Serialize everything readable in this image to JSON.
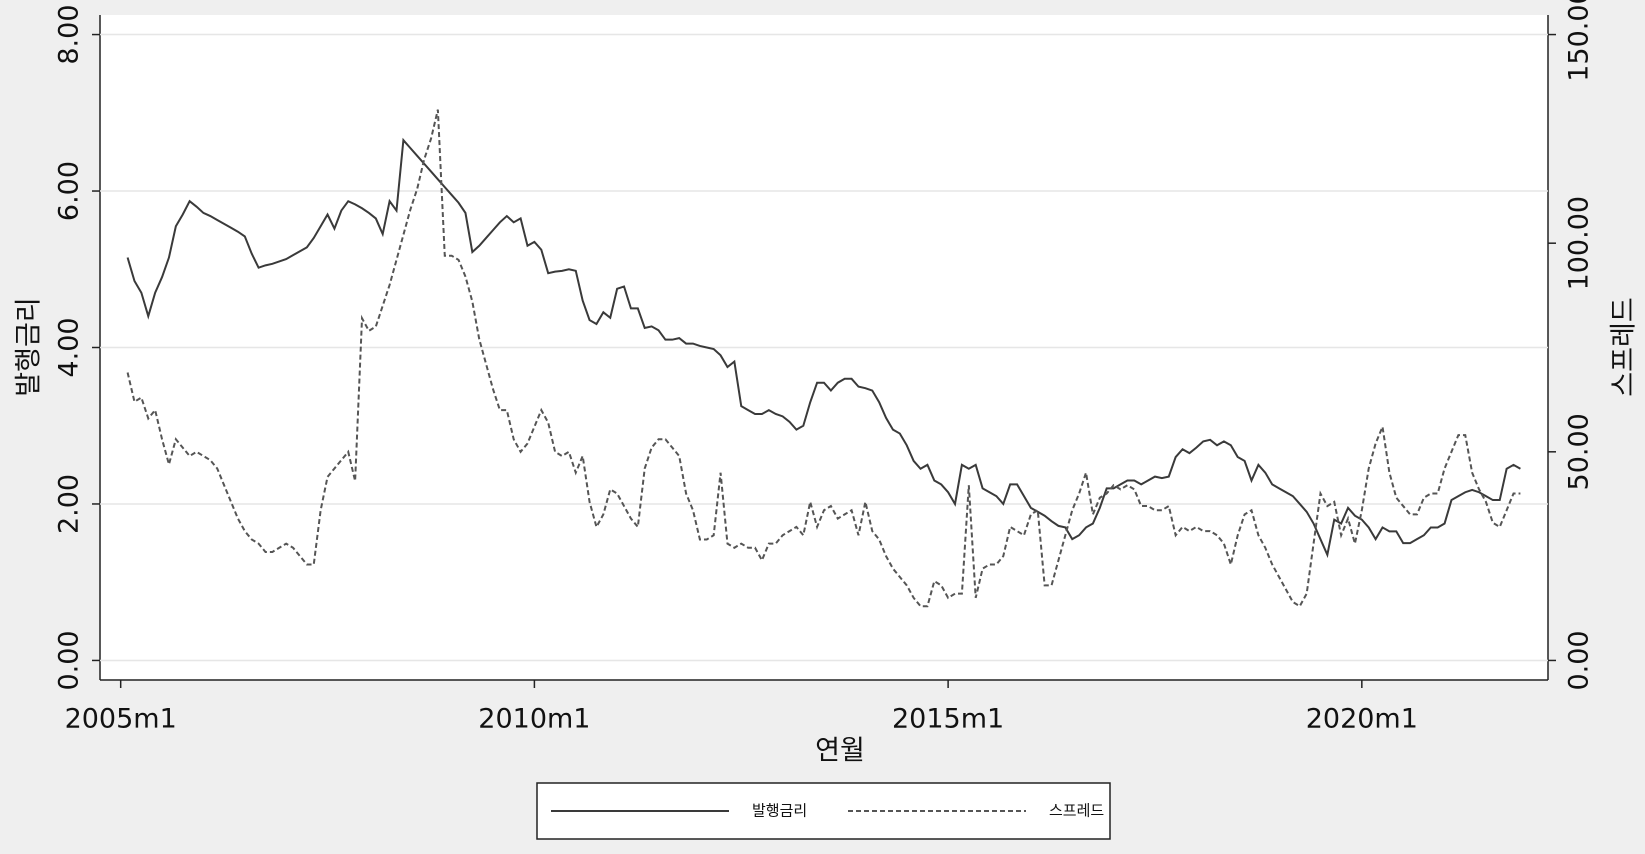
{
  "chart_data": {
    "type": "line",
    "x_label": "연월",
    "y_label": "발행금리",
    "y2_label": "스프레드",
    "xlim": [
      "2004m10",
      "2022m4"
    ],
    "xticks": [
      "2005m1",
      "2010m1",
      "2015m1",
      "2020m1"
    ],
    "ylim": [
      -0.25,
      8.25
    ],
    "yticks": [
      {
        "value": 0,
        "label": "0.00"
      },
      {
        "value": 2,
        "label": "2.00"
      },
      {
        "value": 4,
        "label": "4.00"
      },
      {
        "value": 6,
        "label": "6.00"
      },
      {
        "value": 8,
        "label": "8.00"
      }
    ],
    "y2lim": [
      -4.6875,
      154.6875
    ],
    "y2ticks": [
      {
        "value": 0,
        "label": "0.00"
      },
      {
        "value": 50,
        "label": "50.00"
      },
      {
        "value": 100,
        "label": "100.00"
      },
      {
        "value": 150,
        "label": "150.00"
      }
    ],
    "grid": true,
    "legend": "bottom",
    "x": [
      "2005m2",
      "2005m3",
      "2005m4",
      "2005m5",
      "2005m6",
      "2005m7",
      "2005m8",
      "2005m9",
      "2005m10",
      "2005m11",
      "2005m12",
      "2006m1",
      "2006m2",
      "2006m3",
      "2006m4",
      "2006m5",
      "2006m6",
      "2006m7",
      "2006m8",
      "2006m9",
      "2006m10",
      "2006m11",
      "2006m12",
      "2007m1",
      "2007m2",
      "2007m3",
      "2007m4",
      "2007m5",
      "2007m6",
      "2007m7",
      "2007m8",
      "2007m9",
      "2007m10",
      "2007m11",
      "2007m12",
      "2008m1",
      "2008m2",
      "2008m3",
      "2008m4",
      "2008m5",
      "2008m6",
      "2008m7",
      "2008m8",
      "2008m9",
      "2008m10",
      "2008m11",
      "2008m12",
      "2009m1",
      "2009m2",
      "2009m3",
      "2009m4",
      "2009m5",
      "2009m6",
      "2009m7",
      "2009m8",
      "2009m9",
      "2009m10",
      "2009m11",
      "2009m12",
      "2010m1",
      "2010m2",
      "2010m3",
      "2010m4",
      "2010m5",
      "2010m6",
      "2010m7",
      "2010m8",
      "2010m9",
      "2010m10",
      "2010m11",
      "2010m12",
      "2011m1",
      "2011m2",
      "2011m3",
      "2011m4",
      "2011m5",
      "2011m6",
      "2011m7",
      "2011m8",
      "2011m9",
      "2011m10",
      "2011m11",
      "2011m12",
      "2012m1",
      "2012m2",
      "2012m3",
      "2012m4",
      "2012m5",
      "2012m6",
      "2012m7",
      "2012m8",
      "2012m9",
      "2012m10",
      "2012m11",
      "2012m12",
      "2013m1",
      "2013m2",
      "2013m3",
      "2013m4",
      "2013m5",
      "2013m6",
      "2013m7",
      "2013m8",
      "2013m9",
      "2013m10",
      "2013m11",
      "2013m12",
      "2014m1",
      "2014m2",
      "2014m3",
      "2014m4",
      "2014m5",
      "2014m6",
      "2014m7",
      "2014m8",
      "2014m9",
      "2014m10",
      "2014m11",
      "2014m12",
      "2015m1",
      "2015m2",
      "2015m3",
      "2015m4",
      "2015m5",
      "2015m6",
      "2015m7",
      "2015m8",
      "2015m9",
      "2015m10",
      "2015m11",
      "2015m12",
      "2016m1",
      "2016m2",
      "2016m3",
      "2016m4",
      "2016m5",
      "2016m6",
      "2016m7",
      "2016m8",
      "2016m9",
      "2016m10",
      "2016m11",
      "2016m12",
      "2017m1",
      "2017m2",
      "2017m3",
      "2017m4",
      "2017m5",
      "2017m6",
      "2017m7",
      "2017m8",
      "2017m9",
      "2017m10",
      "2017m11",
      "2017m12",
      "2018m1",
      "2018m2",
      "2018m3",
      "2018m4",
      "2018m5",
      "2018m6",
      "2018m7",
      "2018m8",
      "2018m9",
      "2018m10",
      "2018m11",
      "2018m12",
      "2019m1",
      "2019m2",
      "2019m3",
      "2019m4",
      "2019m5",
      "2019m6",
      "2019m7",
      "2019m8",
      "2019m9",
      "2019m10",
      "2019m11",
      "2019m12",
      "2020m1",
      "2020m2",
      "2020m3",
      "2020m4",
      "2020m5",
      "2020m6",
      "2020m7",
      "2020m8",
      "2020m9",
      "2020m10",
      "2020m11",
      "2020m12",
      "2021m1",
      "2021m2",
      "2021m3",
      "2021m4",
      "2021m5",
      "2021m6",
      "2021m7",
      "2021m8",
      "2021m9",
      "2021m10",
      "2021m11",
      "2021m12"
    ],
    "series": [
      {
        "name": "발행금리",
        "color": "#3a3a3a",
        "dash": "solid",
        "values": [
          5.15,
          4.85,
          4.7,
          4.4,
          4.7,
          4.9,
          5.15,
          5.55,
          5.7,
          5.87,
          5.8,
          5.72,
          5.68,
          5.63,
          5.58,
          5.53,
          5.48,
          5.42,
          5.2,
          5.02,
          5.05,
          5.07,
          5.1,
          5.13,
          5.18,
          5.23,
          5.28,
          5.4,
          5.55,
          5.7,
          5.52,
          5.75,
          5.87,
          5.83,
          5.78,
          5.72,
          5.65,
          5.45,
          5.87,
          5.75,
          6.65,
          6.55,
          6.45,
          6.35,
          6.25,
          6.15,
          6.05,
          5.95,
          5.85,
          5.72,
          5.22,
          5.3,
          5.4,
          5.5,
          5.6,
          5.68,
          5.6,
          5.65,
          5.3,
          5.35,
          5.25,
          4.95,
          4.97,
          4.98,
          5.0,
          4.98,
          4.6,
          4.35,
          4.3,
          4.45,
          4.38,
          4.75,
          4.78,
          4.5,
          4.5,
          4.25,
          4.27,
          4.22,
          4.1,
          4.1,
          4.12,
          4.05,
          4.05,
          4.02,
          4.0,
          3.98,
          3.9,
          3.75,
          3.82,
          3.25,
          3.2,
          3.15,
          3.15,
          3.2,
          3.15,
          3.12,
          3.05,
          2.95,
          3.0,
          3.3,
          3.55,
          3.55,
          3.45,
          3.55,
          3.6,
          3.6,
          3.5,
          3.48,
          3.45,
          3.3,
          3.1,
          2.95,
          2.9,
          2.75,
          2.55,
          2.45,
          2.5,
          2.3,
          2.25,
          2.15,
          2.0,
          2.5,
          2.45,
          2.5,
          2.2,
          2.15,
          2.1,
          2.0,
          2.25,
          2.25,
          2.1,
          1.95,
          1.9,
          1.85,
          1.78,
          1.72,
          1.7,
          1.55,
          1.6,
          1.7,
          1.75,
          1.95,
          2.2,
          2.2,
          2.25,
          2.3,
          2.3,
          2.25,
          2.3,
          2.35,
          2.33,
          2.35,
          2.6,
          2.7,
          2.65,
          2.72,
          2.8,
          2.82,
          2.75,
          2.8,
          2.75,
          2.6,
          2.55,
          2.3,
          2.5,
          2.4,
          2.25,
          2.2,
          2.15,
          2.1,
          2.0,
          1.9,
          1.75,
          1.55,
          1.35,
          1.8,
          1.75,
          1.95,
          1.85,
          1.8,
          1.7,
          1.55,
          1.7,
          1.65,
          1.65,
          1.5,
          1.5,
          1.55,
          1.6,
          1.7,
          1.7,
          1.75,
          2.05,
          2.1,
          2.15,
          2.18,
          2.15,
          2.1,
          2.05,
          2.05,
          2.45,
          2.5,
          2.45
        ]
      },
      {
        "name": "스프레드",
        "color": "#555555",
        "dash": "dashed",
        "axis": "y2",
        "values": [
          69,
          62,
          63,
          58,
          60,
          53,
          47,
          53,
          51,
          49,
          50,
          49,
          48,
          46,
          42,
          38,
          34,
          31,
          29,
          28,
          26,
          26,
          27,
          28,
          27,
          25,
          23,
          23,
          36,
          44,
          46,
          48,
          50,
          43,
          82,
          79,
          80,
          85,
          90,
          96,
          102,
          108,
          113,
          120,
          125,
          132,
          97,
          97,
          96,
          92,
          86,
          77,
          71,
          65,
          60,
          60,
          53,
          50,
          52,
          56,
          60,
          57,
          50,
          49,
          50,
          45,
          49,
          38,
          32,
          35,
          41,
          40,
          37,
          34,
          32,
          46,
          51,
          53,
          53,
          51,
          49,
          40,
          36,
          29,
          29,
          30,
          45,
          28,
          27,
          28,
          27,
          27,
          24,
          28,
          28,
          30,
          31,
          32,
          30,
          38,
          32,
          36,
          37,
          34,
          35,
          36,
          30,
          38,
          31,
          29,
          25,
          22,
          20,
          18,
          15,
          13,
          13,
          19,
          18,
          15,
          16,
          16,
          42,
          15,
          22,
          23,
          23,
          25,
          32,
          31,
          30,
          35,
          36,
          18,
          18,
          24,
          30,
          36,
          40,
          45,
          35,
          39,
          40,
          42,
          41,
          42,
          41,
          37,
          37,
          36,
          36,
          37,
          30,
          32,
          31,
          32,
          31,
          31,
          30,
          28,
          23,
          30,
          35,
          36,
          30,
          27,
          23,
          20,
          17,
          14,
          13,
          16,
          28,
          40,
          37,
          38,
          30,
          34,
          28,
          36,
          46,
          52,
          56,
          45,
          39,
          37,
          35,
          35,
          39,
          40,
          40,
          46,
          50,
          54,
          54,
          45,
          41,
          38,
          33,
          32,
          36,
          40,
          40
        ]
      }
    ]
  }
}
